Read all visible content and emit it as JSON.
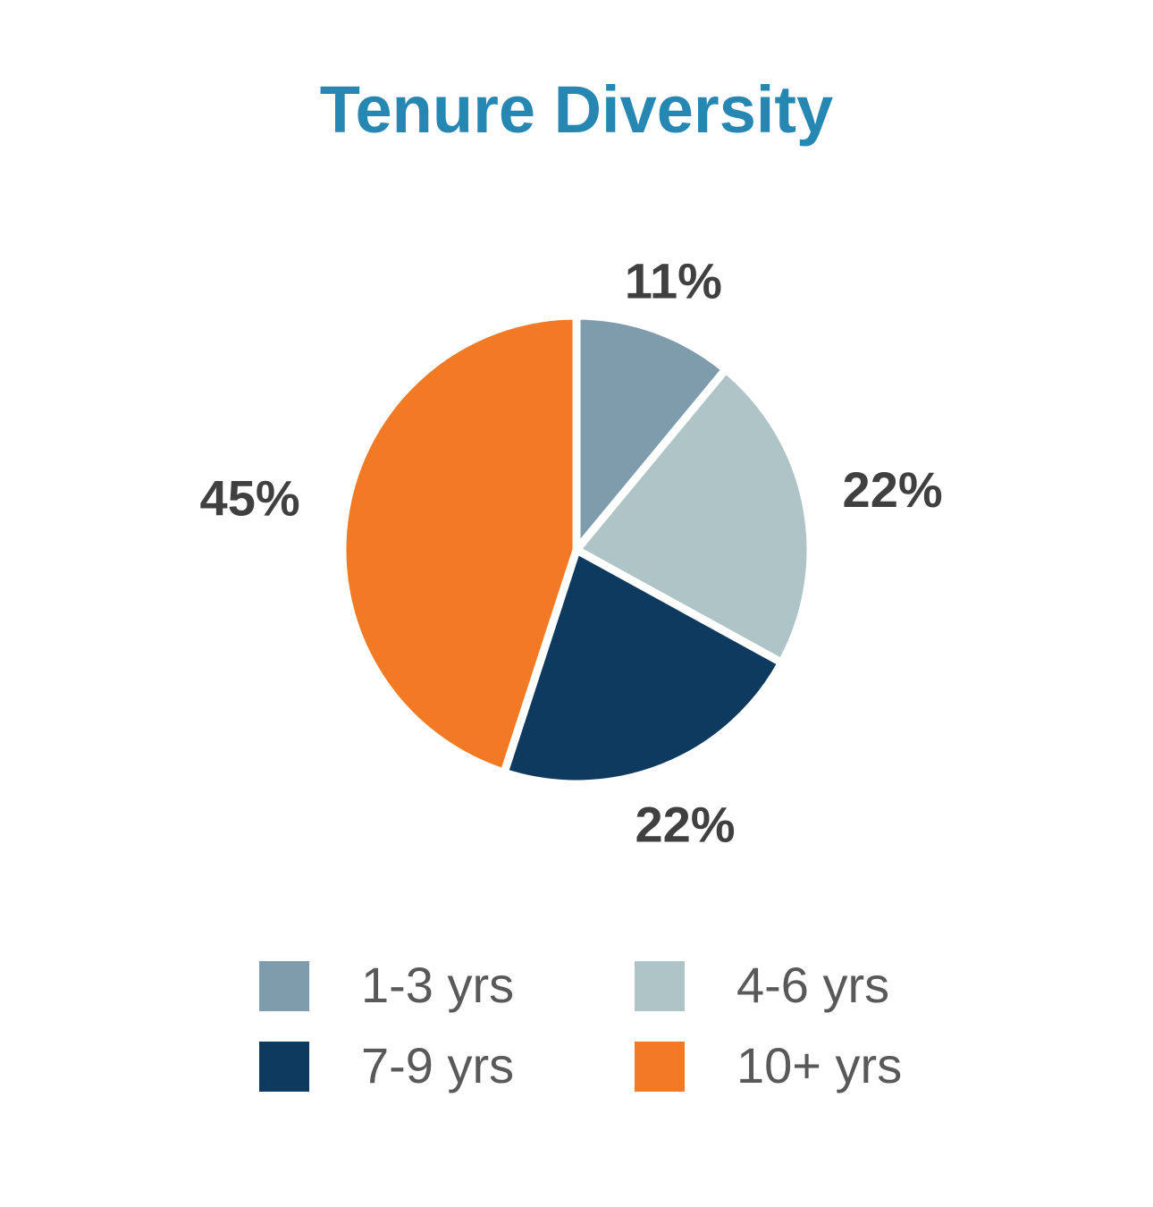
{
  "chart_data": {
    "type": "pie",
    "title": "Tenure Diversity",
    "categories": [
      "1-3 yrs",
      "4-6 yrs",
      "7-9 yrs",
      "10+ yrs"
    ],
    "values": [
      11,
      22,
      22,
      45
    ],
    "labels": [
      "11%",
      "22%",
      "22%",
      "45%"
    ],
    "colors": [
      "#7f9cad",
      "#afc4c7",
      "#0f3a5f",
      "#f27a25"
    ],
    "legend_position": "bottom"
  }
}
